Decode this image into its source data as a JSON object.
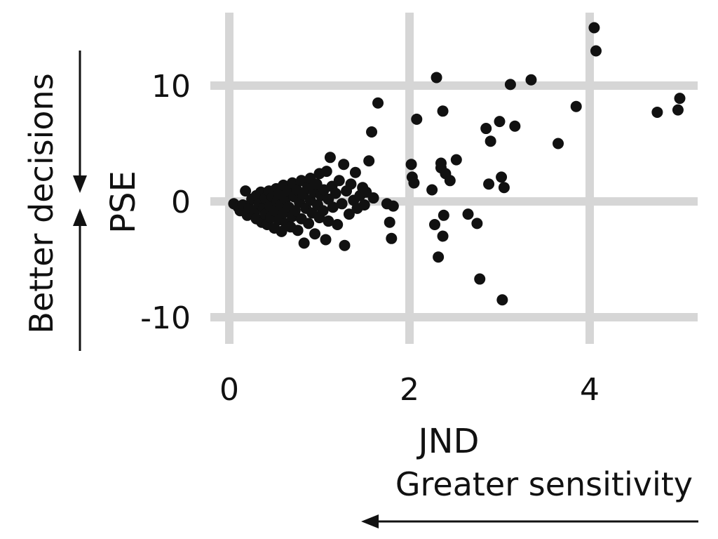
{
  "chart_data": {
    "type": "scatter",
    "title": "",
    "xlabel": "JND",
    "ylabel": "PSE",
    "xlim": [
      -0.1,
      5.2
    ],
    "ylim": [
      -10.5,
      16
    ],
    "xticks": [
      0,
      2,
      4
    ],
    "yticks": [
      -10,
      0,
      10
    ],
    "grid": true,
    "annotations": {
      "y_arrow_label": "Better decisions",
      "x_arrow_label": "Greater sensitivity"
    },
    "colors": {
      "points": "#111111",
      "grid": "#d6d6d6"
    },
    "series": [
      {
        "points": [
          [
            0.05,
            -0.2
          ],
          [
            0.1,
            -0.5
          ],
          [
            0.12,
            -0.8
          ],
          [
            0.15,
            -0.3
          ],
          [
            0.18,
            0.9
          ],
          [
            0.2,
            -1.2
          ],
          [
            0.22,
            -0.6
          ],
          [
            0.25,
            0.2
          ],
          [
            0.28,
            -0.9
          ],
          [
            0.3,
            -1.5
          ],
          [
            0.3,
            0.5
          ],
          [
            0.33,
            -0.2
          ],
          [
            0.35,
            0.8
          ],
          [
            0.36,
            -1.8
          ],
          [
            0.38,
            -0.6
          ],
          [
            0.4,
            0.3
          ],
          [
            0.4,
            -1.1
          ],
          [
            0.42,
            -2.0
          ],
          [
            0.44,
            0.9
          ],
          [
            0.45,
            -0.4
          ],
          [
            0.46,
            -1.4
          ],
          [
            0.48,
            0.4
          ],
          [
            0.5,
            -0.8
          ],
          [
            0.5,
            -2.3
          ],
          [
            0.52,
            1.1
          ],
          [
            0.53,
            0.0
          ],
          [
            0.55,
            -1.6
          ],
          [
            0.55,
            0.7
          ],
          [
            0.57,
            -0.3
          ],
          [
            0.58,
            -2.6
          ],
          [
            0.6,
            1.4
          ],
          [
            0.6,
            -1.0
          ],
          [
            0.62,
            0.2
          ],
          [
            0.63,
            -1.9
          ],
          [
            0.65,
            0.9
          ],
          [
            0.66,
            -0.5
          ],
          [
            0.68,
            -2.2
          ],
          [
            0.7,
            1.6
          ],
          [
            0.7,
            -1.3
          ],
          [
            0.72,
            0.4
          ],
          [
            0.73,
            -0.8
          ],
          [
            0.75,
            1.0
          ],
          [
            0.76,
            -2.5
          ],
          [
            0.78,
            -0.1
          ],
          [
            0.8,
            1.8
          ],
          [
            0.8,
            -1.5
          ],
          [
            0.82,
            0.6
          ],
          [
            0.83,
            -3.6
          ],
          [
            0.85,
            -0.6
          ],
          [
            0.87,
            1.2
          ],
          [
            0.88,
            -1.9
          ],
          [
            0.9,
            0.1
          ],
          [
            0.9,
            2.0
          ],
          [
            0.92,
            -1.0
          ],
          [
            0.94,
            0.8
          ],
          [
            0.95,
            -2.8
          ],
          [
            0.97,
            1.5
          ],
          [
            0.98,
            -0.3
          ],
          [
            1.0,
            2.4
          ],
          [
            1.0,
            -1.4
          ],
          [
            1.02,
            0.5
          ],
          [
            1.04,
            -0.8
          ],
          [
            1.05,
            1.0
          ],
          [
            1.07,
            -3.3
          ],
          [
            1.08,
            2.6
          ],
          [
            1.1,
            0.2
          ],
          [
            1.1,
            -1.7
          ],
          [
            1.12,
            3.8
          ],
          [
            1.14,
            1.3
          ],
          [
            1.15,
            -0.5
          ],
          [
            1.18,
            0.7
          ],
          [
            1.2,
            -2.0
          ],
          [
            1.22,
            1.8
          ],
          [
            1.25,
            -0.2
          ],
          [
            1.27,
            3.2
          ],
          [
            1.28,
            -3.8
          ],
          [
            1.3,
            0.9
          ],
          [
            1.33,
            -1.1
          ],
          [
            1.35,
            1.5
          ],
          [
            1.38,
            0.1
          ],
          [
            1.4,
            2.5
          ],
          [
            1.42,
            -0.6
          ],
          [
            1.45,
            0.5
          ],
          [
            1.48,
            1.2
          ],
          [
            1.5,
            -0.3
          ],
          [
            1.52,
            0.8
          ],
          [
            1.55,
            3.5
          ],
          [
            1.58,
            6.0
          ],
          [
            1.6,
            0.3
          ],
          [
            1.65,
            8.5
          ],
          [
            1.75,
            -0.2
          ],
          [
            1.78,
            -1.8
          ],
          [
            1.8,
            -3.2
          ],
          [
            1.82,
            -0.4
          ],
          [
            2.02,
            3.2
          ],
          [
            2.03,
            2.1
          ],
          [
            2.05,
            1.6
          ],
          [
            2.08,
            7.1
          ],
          [
            2.25,
            1.0
          ],
          [
            2.28,
            -2.0
          ],
          [
            2.3,
            10.7
          ],
          [
            2.32,
            -4.8
          ],
          [
            2.35,
            2.9
          ],
          [
            2.35,
            3.3
          ],
          [
            2.37,
            7.8
          ],
          [
            2.37,
            -3.0
          ],
          [
            2.38,
            -1.2
          ],
          [
            2.4,
            2.4
          ],
          [
            2.45,
            1.8
          ],
          [
            2.52,
            3.6
          ],
          [
            2.65,
            -1.1
          ],
          [
            2.75,
            -1.9
          ],
          [
            2.78,
            -6.7
          ],
          [
            2.85,
            6.3
          ],
          [
            2.88,
            1.5
          ],
          [
            2.9,
            5.2
          ],
          [
            3.0,
            6.9
          ],
          [
            3.02,
            2.1
          ],
          [
            3.05,
            1.2
          ],
          [
            3.03,
            -8.5
          ],
          [
            3.12,
            10.1
          ],
          [
            3.17,
            6.5
          ],
          [
            3.35,
            10.5
          ],
          [
            3.65,
            5.0
          ],
          [
            3.85,
            8.2
          ],
          [
            4.05,
            15.0
          ],
          [
            4.07,
            13.0
          ],
          [
            4.75,
            7.7
          ],
          [
            4.98,
            7.9
          ],
          [
            5.0,
            8.9
          ]
        ]
      }
    ]
  }
}
